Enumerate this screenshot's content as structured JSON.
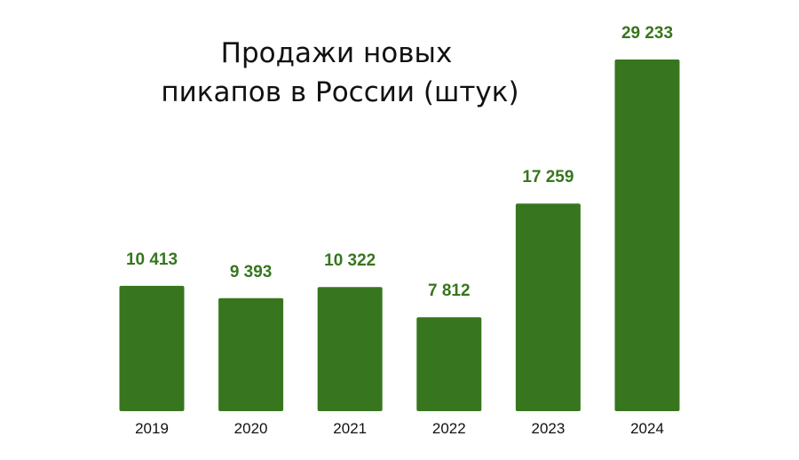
{
  "chart_data": {
    "type": "bar",
    "title_lines": [
      "Продажи новых",
      "пикапов в России (штук)"
    ],
    "categories": [
      "2019",
      "2020",
      "2021",
      "2022",
      "2023",
      "2024"
    ],
    "values": [
      10413,
      9393,
      10322,
      7812,
      17259,
      29233
    ],
    "value_labels": [
      "10 413",
      "9 393",
      "10 322",
      "7 812",
      "17 259",
      "29 233"
    ],
    "xlabel": "",
    "ylabel": "",
    "ylim": [
      0,
      29233
    ],
    "grid": false,
    "legend": "none",
    "colors": {
      "bar": "#37761e",
      "value_label": "#37761e",
      "title": "#111111"
    }
  }
}
